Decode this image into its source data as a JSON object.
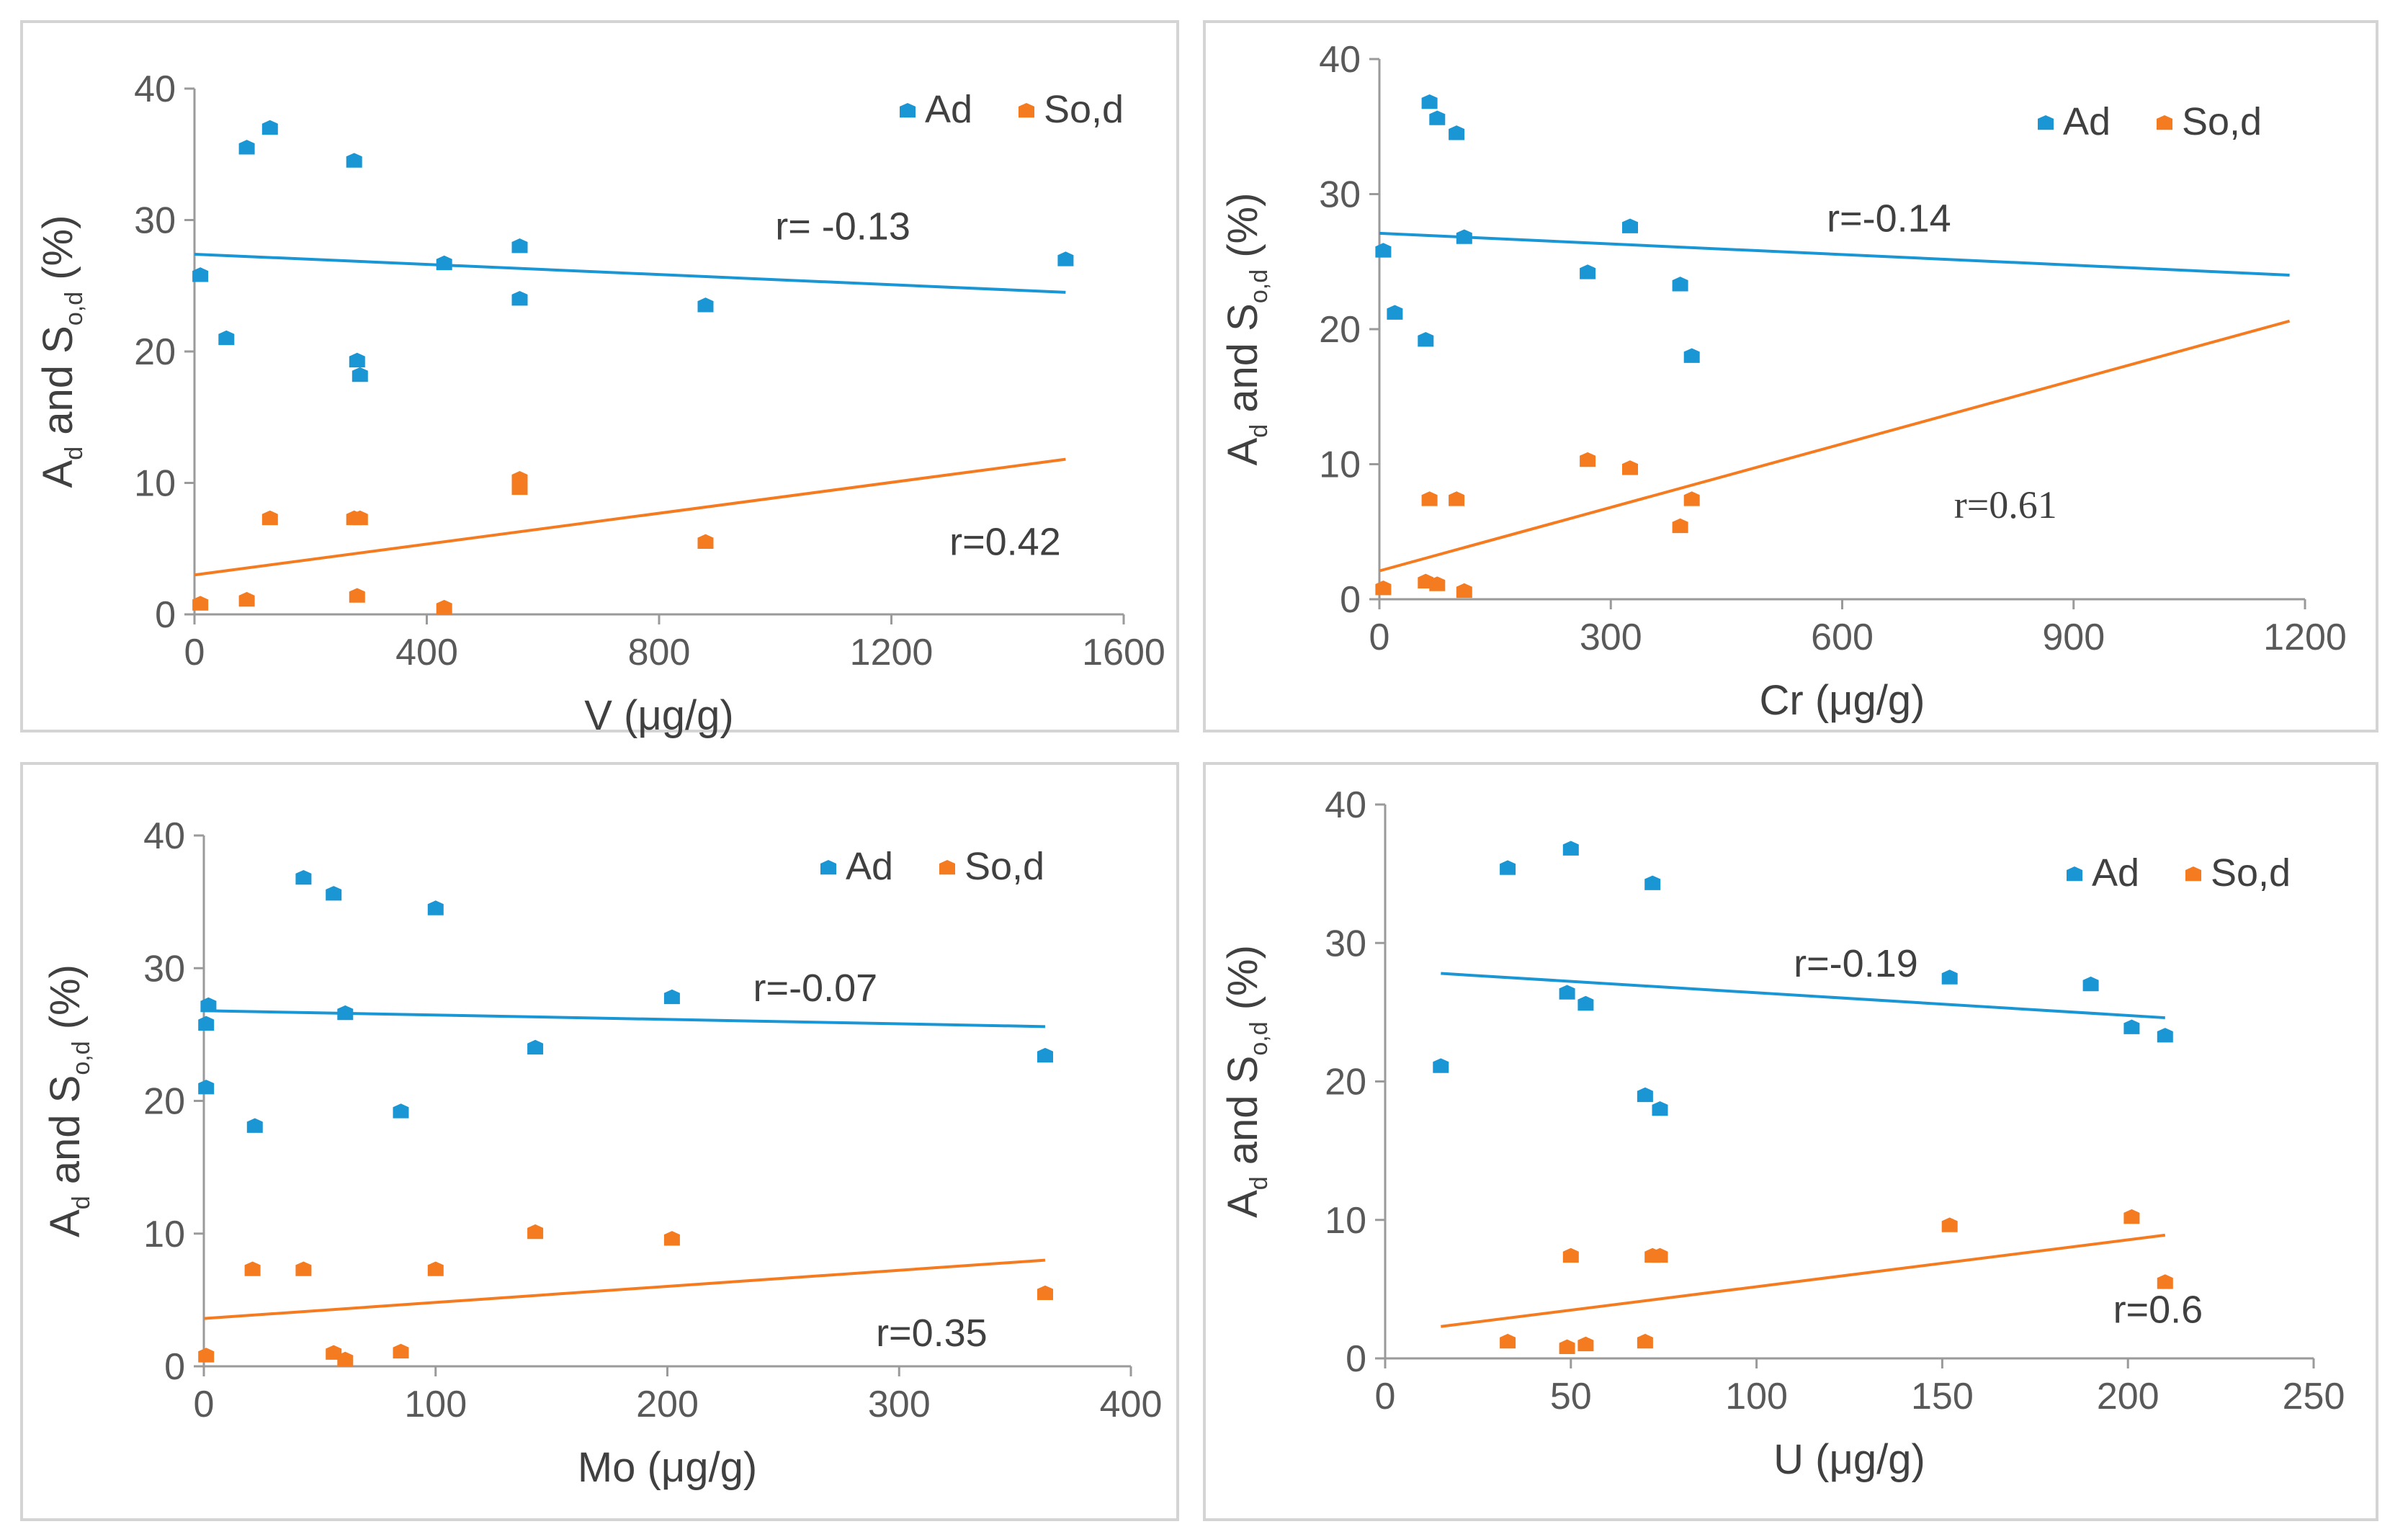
{
  "colors": {
    "ad": "#1a96d4",
    "sod": "#f47b20",
    "axis": "#9a9a9a",
    "text": "#404040",
    "tick_text": "#595959",
    "border": "#d4d4d4"
  },
  "chart_data": [
    {
      "type": "scatter",
      "name": "V",
      "xlabel": "V (μg/g)",
      "ylabel_main": "A",
      "ylabel_sub1": "d",
      "ylabel_mid": " and S",
      "ylabel_sub2": "o,d",
      "ylabel_tail": " (%)",
      "xlim": [
        0,
        1600
      ],
      "ylim": [
        0,
        40
      ],
      "xticks": [
        "0",
        "400",
        "800",
        "1200",
        "1600"
      ],
      "yticks": [
        "0",
        "10",
        "20",
        "30",
        "40"
      ],
      "legend": [
        "Ad",
        "So,d"
      ],
      "series": [
        {
          "name": "Ad",
          "points": [
            [
              10,
              25.8
            ],
            [
              55,
              21
            ],
            [
              90,
              35.5
            ],
            [
              130,
              37
            ],
            [
              275,
              34.5
            ],
            [
              280,
              19.3
            ],
            [
              285,
              18.2
            ],
            [
              430,
              26.7
            ],
            [
              560,
              28
            ],
            [
              560,
              24
            ],
            [
              880,
              23.5
            ],
            [
              1500,
              27
            ]
          ]
        },
        {
          "name": "So,d",
          "points": [
            [
              10,
              0.8
            ],
            [
              90,
              1.1
            ],
            [
              130,
              7.3
            ],
            [
              275,
              7.3
            ],
            [
              285,
              7.3
            ],
            [
              280,
              1.4
            ],
            [
              430,
              0.5
            ],
            [
              560,
              10.3
            ],
            [
              560,
              9.6
            ],
            [
              880,
              5.5
            ]
          ]
        }
      ],
      "trendlines": [
        {
          "series": "Ad",
          "x": [
            0,
            1500
          ],
          "y": [
            27.4,
            24.5
          ],
          "label": "r= -0.13",
          "label_at": [
            1000,
            29.5
          ]
        },
        {
          "series": "So,d",
          "x": [
            0,
            1500
          ],
          "y": [
            3.0,
            11.8
          ],
          "label": "r=0.42",
          "label_at": [
            1300,
            5.5
          ]
        }
      ]
    },
    {
      "type": "scatter",
      "name": "Cr",
      "xlabel": "Cr (μg/g)",
      "ylabel_main": "A",
      "ylabel_sub1": "d",
      "ylabel_mid": " and S",
      "ylabel_sub2": "o,d",
      "ylabel_tail": " (%)",
      "xlim": [
        0,
        1200
      ],
      "ylim": [
        0,
        40
      ],
      "xticks": [
        "0",
        "300",
        "600",
        "900",
        "1200"
      ],
      "yticks": [
        "0",
        "10",
        "20",
        "30",
        "40"
      ],
      "legend": [
        "Ad",
        "So,d"
      ],
      "series": [
        {
          "name": "Ad",
          "points": [
            [
              5,
              25.8
            ],
            [
              20,
              21.2
            ],
            [
              60,
              19.2
            ],
            [
              65,
              36.8
            ],
            [
              75,
              35.6
            ],
            [
              100,
              34.5
            ],
            [
              110,
              26.8
            ],
            [
              270,
              24.2
            ],
            [
              325,
              27.6
            ],
            [
              390,
              23.3
            ],
            [
              405,
              18
            ]
          ]
        },
        {
          "name": "So,d",
          "points": [
            [
              5,
              0.8
            ],
            [
              60,
              1.3
            ],
            [
              65,
              7.4
            ],
            [
              75,
              1.1
            ],
            [
              100,
              7.4
            ],
            [
              110,
              0.6
            ],
            [
              270,
              10.3
            ],
            [
              325,
              9.7
            ],
            [
              390,
              5.4
            ],
            [
              405,
              7.4
            ]
          ]
        }
      ],
      "trendlines": [
        {
          "series": "Ad",
          "x": [
            0,
            1180
          ],
          "y": [
            27.1,
            24.0
          ],
          "label": "r=-0.14",
          "label_at": [
            580,
            28.2
          ]
        },
        {
          "series": "So,d",
          "x": [
            0,
            1180
          ],
          "y": [
            2.1,
            20.6
          ],
          "label": "r=0.61",
          "label_at": [
            745,
            7.0
          ],
          "serif": true
        }
      ]
    },
    {
      "type": "scatter",
      "name": "Mo",
      "xlabel": "Mo (μg/g)",
      "ylabel_main": "A",
      "ylabel_sub1": "d",
      "ylabel_mid": " and S",
      "ylabel_sub2": "o,d",
      "ylabel_tail": " (%)",
      "xlim": [
        0,
        400
      ],
      "ylim": [
        0,
        40
      ],
      "xticks": [
        "0",
        "100",
        "200",
        "300",
        "400"
      ],
      "yticks": [
        "0",
        "10",
        "20",
        "30",
        "40"
      ],
      "legend": [
        "Ad",
        "So,d"
      ],
      "series": [
        {
          "name": "Ad",
          "points": [
            [
              1,
              25.8
            ],
            [
              2,
              27.2
            ],
            [
              1,
              21
            ],
            [
              22,
              18.1
            ],
            [
              43,
              36.8
            ],
            [
              56,
              35.6
            ],
            [
              61,
              26.6
            ],
            [
              85,
              19.2
            ],
            [
              100,
              34.5
            ],
            [
              143,
              24
            ],
            [
              202,
              27.8
            ],
            [
              363,
              23.4
            ]
          ]
        },
        {
          "name": "So,d",
          "points": [
            [
              1,
              0.8
            ],
            [
              21,
              7.3
            ],
            [
              43,
              7.3
            ],
            [
              56,
              1
            ],
            [
              61,
              0.5
            ],
            [
              85,
              1.1
            ],
            [
              100,
              7.3
            ],
            [
              143,
              10.1
            ],
            [
              202,
              9.6
            ],
            [
              363,
              5.5
            ]
          ]
        }
      ],
      "trendlines": [
        {
          "series": "Ad",
          "x": [
            0,
            363
          ],
          "y": [
            26.8,
            25.6
          ],
          "label": "r=-0.07",
          "label_at": [
            237,
            28.5
          ]
        },
        {
          "series": "So,d",
          "x": [
            0,
            363
          ],
          "y": [
            3.6,
            8.0
          ],
          "label": "r=0.35",
          "label_at": [
            290,
            2.5
          ]
        }
      ]
    },
    {
      "type": "scatter",
      "name": "U",
      "xlabel": "U (μg/g)",
      "ylabel_main": "A",
      "ylabel_sub1": "d",
      "ylabel_mid": " and S",
      "ylabel_sub2": "o,d",
      "ylabel_tail": " (%)",
      "xlim": [
        0,
        250
      ],
      "ylim": [
        0,
        40
      ],
      "xticks": [
        "0",
        "50",
        "100",
        "150",
        "200",
        "250"
      ],
      "yticks": [
        "0",
        "10",
        "20",
        "30",
        "40"
      ],
      "legend": [
        "Ad",
        "So,d"
      ],
      "series": [
        {
          "name": "Ad",
          "points": [
            [
              15,
              21.1
            ],
            [
              33,
              35.4
            ],
            [
              49,
              26.4
            ],
            [
              50,
              36.8
            ],
            [
              54,
              25.6
            ],
            [
              70,
              19
            ],
            [
              72,
              34.3
            ],
            [
              74,
              18
            ],
            [
              152,
              27.5
            ],
            [
              190,
              27
            ],
            [
              201,
              23.9
            ],
            [
              210,
              23.3
            ]
          ]
        },
        {
          "name": "So,d",
          "points": [
            [
              33,
              1.2
            ],
            [
              49,
              0.8
            ],
            [
              50,
              7.4
            ],
            [
              54,
              1
            ],
            [
              70,
              1.2
            ],
            [
              72,
              7.4
            ],
            [
              74,
              7.4
            ],
            [
              152,
              9.6
            ],
            [
              201,
              10.2
            ],
            [
              210,
              5.5
            ]
          ]
        }
      ],
      "trendlines": [
        {
          "series": "Ad",
          "x": [
            15,
            210
          ],
          "y": [
            27.8,
            24.6
          ],
          "label": "r=-0.19",
          "label_at": [
            110,
            28.5
          ]
        },
        {
          "series": "So,d",
          "x": [
            15,
            210
          ],
          "y": [
            2.3,
            8.9
          ],
          "label": "r=0.6",
          "label_at": [
            196,
            3.5
          ]
        }
      ]
    }
  ]
}
